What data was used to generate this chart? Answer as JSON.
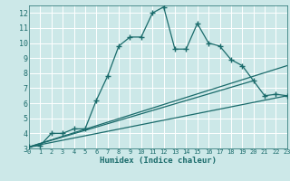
{
  "xlabel": "Humidex (Indice chaleur)",
  "bg_color": "#cce8e8",
  "grid_color": "#ffffff",
  "line_color": "#1a6b6b",
  "xlim": [
    0,
    23
  ],
  "ylim": [
    3,
    12.5
  ],
  "yticks": [
    3,
    4,
    5,
    6,
    7,
    8,
    9,
    10,
    11,
    12
  ],
  "xticks": [
    0,
    1,
    2,
    3,
    4,
    5,
    6,
    7,
    8,
    9,
    10,
    11,
    12,
    13,
    14,
    15,
    16,
    17,
    18,
    19,
    20,
    21,
    22,
    23
  ],
  "series1_x": [
    0,
    1,
    2,
    3,
    4,
    5,
    6,
    7,
    8,
    9,
    10,
    11,
    12,
    13,
    14,
    15,
    16,
    17,
    18,
    19,
    20,
    21,
    22,
    23
  ],
  "series1_y": [
    3.1,
    3.2,
    4.0,
    4.0,
    4.3,
    4.3,
    6.2,
    7.8,
    9.8,
    10.4,
    10.4,
    12.0,
    12.4,
    9.6,
    9.6,
    11.3,
    10.0,
    9.8,
    8.9,
    8.5,
    7.5,
    6.5,
    6.6,
    6.5
  ],
  "series2_x": [
    0,
    23
  ],
  "series2_y": [
    3.1,
    8.5
  ],
  "series3_x": [
    0,
    23
  ],
  "series3_y": [
    3.1,
    6.5
  ],
  "series4_x": [
    0,
    20
  ],
  "series4_y": [
    3.1,
    7.5
  ]
}
